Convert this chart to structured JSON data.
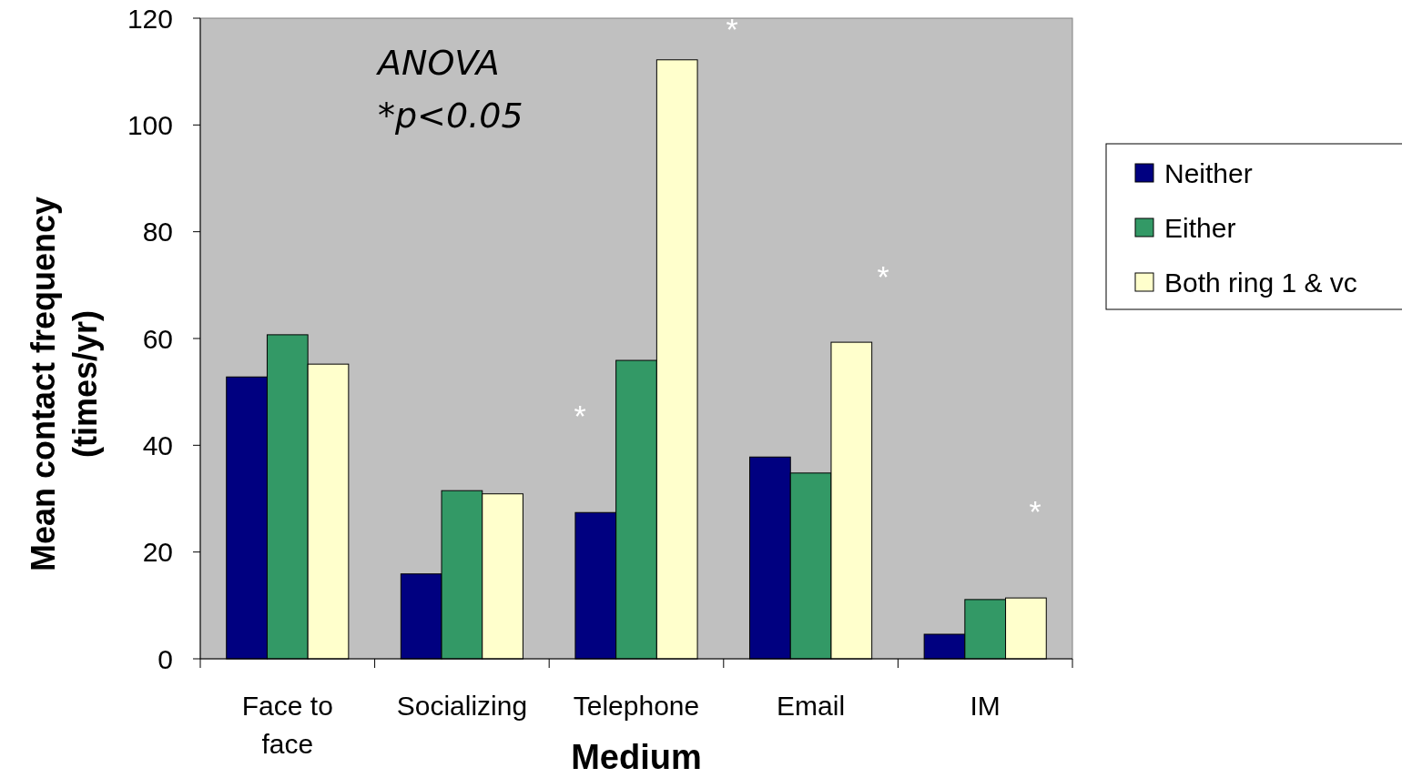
{
  "chart_data": {
    "type": "bar",
    "xlabel": "Medium",
    "ylabel": "Mean contact frequency\n(times/yr)",
    "categories": [
      "Face to face",
      "Socializing",
      "Telephone",
      "Email",
      "IM"
    ],
    "series": [
      {
        "name": "Neither",
        "color": "#000080",
        "values": [
          52.8,
          15.9,
          27.4,
          37.8,
          4.6
        ]
      },
      {
        "name": "Either",
        "color": "#339966",
        "values": [
          60.7,
          31.5,
          55.9,
          34.8,
          11.1
        ]
      },
      {
        "name": "Both ring 1 & vc",
        "color": "#ffffcc",
        "values": [
          55.2,
          30.9,
          112.2,
          59.3,
          11.4
        ]
      }
    ],
    "ylim": [
      0,
      120
    ],
    "yticks": [
      0,
      20,
      40,
      60,
      80,
      100,
      120
    ],
    "grid": false,
    "legend": "right",
    "annotations": [
      "ANOVA",
      "*p<0.05",
      "*",
      "*",
      "*",
      "*"
    ]
  }
}
